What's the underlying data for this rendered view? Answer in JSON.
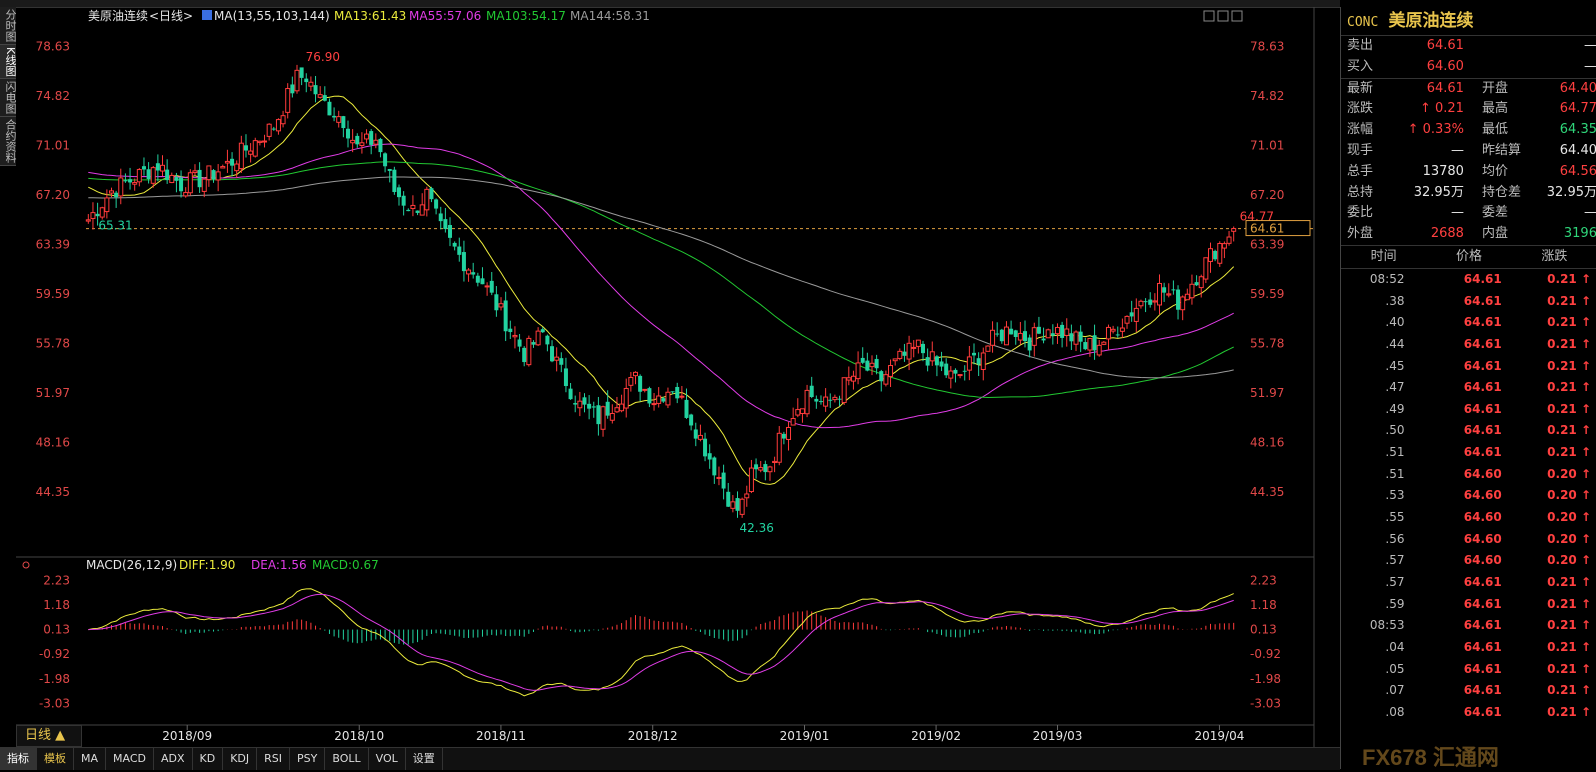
{
  "left_tabs": [
    "分时图",
    "K线图",
    "闪电图",
    "合约资料"
  ],
  "header": {
    "name": "美原油连续",
    "period": "<日线>",
    "ma_label": "MA(13,55,103,144)",
    "ma13": "MA13:61.43",
    "ma55": "MA55:57.06",
    "ma103": "MA103:54.17",
    "ma144": "MA144:58.31"
  },
  "macd_header": {
    "label": "MACD(26,12,9)",
    "diff": "DIFF:1.90",
    "dea": "DEA:1.56",
    "macd": "MACD:0.67"
  },
  "colors": {
    "up": "#ff3b3b",
    "down": "#22d2a0",
    "ma13": "#ecec3c",
    "ma55": "#e03ce6",
    "ma103": "#22c832",
    "ma144": "#9a9a9a",
    "diff": "#ecec3c",
    "dea": "#e03ce6"
  },
  "price_axis": [
    "78.63",
    "74.82",
    "71.01",
    "67.20",
    "63.39",
    "59.59",
    "55.78",
    "51.97",
    "48.16",
    "44.35"
  ],
  "macd_axis": [
    "2.23",
    "1.18",
    "0.13",
    "-0.92",
    "-1.98",
    "-3.03"
  ],
  "date_axis": [
    "2018/09",
    "2018/10",
    "2018/11",
    "2018/12",
    "2019/01",
    "2019/02",
    "2019/03",
    "2019/04"
  ],
  "annotations": {
    "high": "76.90",
    "low": "42.36",
    "left_mark": "65.31",
    "last_high": "64.77",
    "last_price": "64.61",
    "last_tag_below": "63.39"
  },
  "bottom_tabs": [
    "指标",
    "模板",
    "MA",
    "MACD",
    "ADX",
    "KD",
    "KDJ",
    "RSI",
    "PSY",
    "BOLL",
    "VOL",
    "设置"
  ],
  "period_button": "日线 ▲",
  "quote": {
    "code": "CONC",
    "name": "美原油连续",
    "rows": [
      {
        "l": "卖出",
        "v": "64.61",
        "l2": "",
        "v2": "—"
      },
      {
        "l": "买入",
        "v": "64.60",
        "l2": "",
        "v2": "—"
      },
      {
        "l": "最新",
        "v": "64.61",
        "l2": "开盘",
        "v2": "64.40"
      },
      {
        "l": "涨跌",
        "v": "↑ 0.21",
        "l2": "最高",
        "v2": "64.77"
      },
      {
        "l": "涨幅",
        "v": "↑ 0.33%",
        "l2": "最低",
        "v2": "64.35"
      },
      {
        "l": "现手",
        "v": "—",
        "l2": "昨结算",
        "v2": "64.40"
      },
      {
        "l": "总手",
        "v": "13780",
        "l2": "均价",
        "v2": "64.56"
      },
      {
        "l": "总持",
        "v": "32.95万",
        "l2": "持仓差",
        "v2": "32.95万"
      },
      {
        "l": "委比",
        "v": "—",
        "l2": "委差",
        "v2": "—"
      },
      {
        "l": "外盘",
        "v": "2688",
        "l2": "内盘",
        "v2": "3196"
      }
    ]
  },
  "ticks_header": [
    "时间",
    "价格",
    "涨跌"
  ],
  "ticks": [
    {
      "t": "08:52",
      "p": "64.61",
      "c": "0.21 ↑"
    },
    {
      "t": ".38",
      "p": "64.61",
      "c": "0.21 ↑"
    },
    {
      "t": ".40",
      "p": "64.61",
      "c": "0.21 ↑"
    },
    {
      "t": ".44",
      "p": "64.61",
      "c": "0.21 ↑"
    },
    {
      "t": ".45",
      "p": "64.61",
      "c": "0.21 ↑"
    },
    {
      "t": ".47",
      "p": "64.61",
      "c": "0.21 ↑"
    },
    {
      "t": ".49",
      "p": "64.61",
      "c": "0.21 ↑"
    },
    {
      "t": ".50",
      "p": "64.61",
      "c": "0.21 ↑"
    },
    {
      "t": ".51",
      "p": "64.61",
      "c": "0.21 ↑"
    },
    {
      "t": ".51",
      "p": "64.60",
      "c": "0.20 ↑"
    },
    {
      "t": ".53",
      "p": "64.60",
      "c": "0.20 ↑"
    },
    {
      "t": ".55",
      "p": "64.60",
      "c": "0.20 ↑"
    },
    {
      "t": ".56",
      "p": "64.60",
      "c": "0.20 ↑"
    },
    {
      "t": ".57",
      "p": "64.60",
      "c": "0.20 ↑"
    },
    {
      "t": ".57",
      "p": "64.61",
      "c": "0.21 ↑"
    },
    {
      "t": ".59",
      "p": "64.61",
      "c": "0.21 ↑"
    },
    {
      "t": "08:53",
      "p": "64.61",
      "c": "0.21 ↑"
    },
    {
      "t": ".04",
      "p": "64.61",
      "c": "0.21 ↑"
    },
    {
      "t": ".05",
      "p": "64.61",
      "c": "0.21 ↑"
    },
    {
      "t": ".07",
      "p": "64.61",
      "c": "0.21 ↑"
    },
    {
      "t": ".08",
      "p": "64.61",
      "c": "0.21 ↑"
    }
  ],
  "watermark": "FX678 汇通网",
  "chart_data": {
    "type": "candlestick",
    "price_range": [
      40.5,
      80.5
    ],
    "macd_range": [
      -3.6,
      2.8
    ],
    "waypoints": [
      [
        0,
        65.3
      ],
      [
        5,
        67.5
      ],
      [
        10,
        68.5
      ],
      [
        15,
        69.5
      ],
      [
        20,
        68.0
      ],
      [
        25,
        68.5
      ],
      [
        30,
        69.5
      ],
      [
        35,
        71.0
      ],
      [
        40,
        72.5
      ],
      [
        46,
        76.9
      ],
      [
        50,
        74.5
      ],
      [
        55,
        73.0
      ],
      [
        58,
        70.8
      ],
      [
        62,
        71.5
      ],
      [
        66,
        67.5
      ],
      [
        70,
        66.0
      ],
      [
        73,
        67.2
      ],
      [
        76,
        64.5
      ],
      [
        80,
        62.5
      ],
      [
        85,
        60.5
      ],
      [
        90,
        57.5
      ],
      [
        94,
        55.0
      ],
      [
        98,
        56.5
      ],
      [
        102,
        53.5
      ],
      [
        106,
        51.0
      ],
      [
        110,
        50.0
      ],
      [
        114,
        51.5
      ],
      [
        118,
        53.0
      ],
      [
        122,
        51.5
      ],
      [
        126,
        52.5
      ],
      [
        130,
        50.0
      ],
      [
        134,
        47.0
      ],
      [
        138,
        44.0
      ],
      [
        140,
        42.36
      ],
      [
        143,
        45.5
      ],
      [
        147,
        46.5
      ],
      [
        151,
        50.0
      ],
      [
        155,
        52.0
      ],
      [
        159,
        51.0
      ],
      [
        163,
        52.5
      ],
      [
        167,
        54.0
      ],
      [
        171,
        53.0
      ],
      [
        175,
        54.5
      ],
      [
        179,
        55.5
      ],
      [
        183,
        54.0
      ],
      [
        187,
        53.0
      ],
      [
        191,
        54.5
      ],
      [
        195,
        56.0
      ],
      [
        199,
        57.0
      ],
      [
        203,
        56.0
      ],
      [
        207,
        57.0
      ],
      [
        211,
        56.5
      ],
      [
        215,
        55.5
      ],
      [
        219,
        56.0
      ],
      [
        223,
        57.5
      ],
      [
        227,
        59.0
      ],
      [
        231,
        60.0
      ],
      [
        235,
        59.0
      ],
      [
        239,
        61.0
      ],
      [
        243,
        63.0
      ],
      [
        247,
        64.61
      ]
    ]
  }
}
